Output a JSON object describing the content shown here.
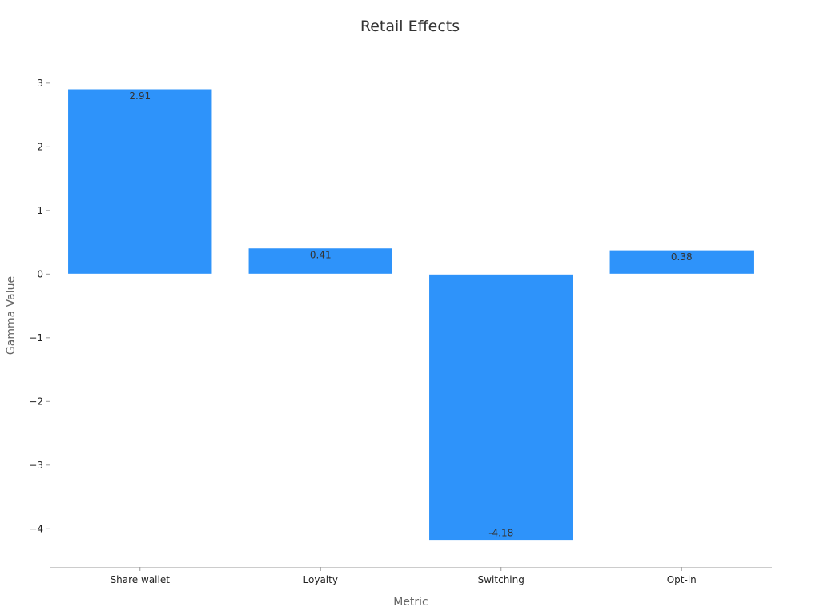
{
  "chart_data": {
    "type": "bar",
    "title": "Retail Effects",
    "xlabel": "Metric",
    "ylabel": "Gamma Value",
    "categories": [
      "Share wallet",
      "Loyalty",
      "Switching",
      "Opt-in"
    ],
    "values": [
      2.91,
      0.41,
      -4.18,
      0.38
    ],
    "value_labels": [
      "2.91",
      "0.41",
      "-4.18",
      "0.38"
    ],
    "ylim": [
      -4.6,
      3.3
    ],
    "yticks": [
      3,
      2,
      1,
      0,
      -1,
      -2,
      -3,
      -4
    ],
    "ytick_labels": [
      "3",
      "2",
      "1",
      "0",
      "−1",
      "−2",
      "−3",
      "−4"
    ],
    "grid": false,
    "bar_color": "#2E93FA"
  }
}
